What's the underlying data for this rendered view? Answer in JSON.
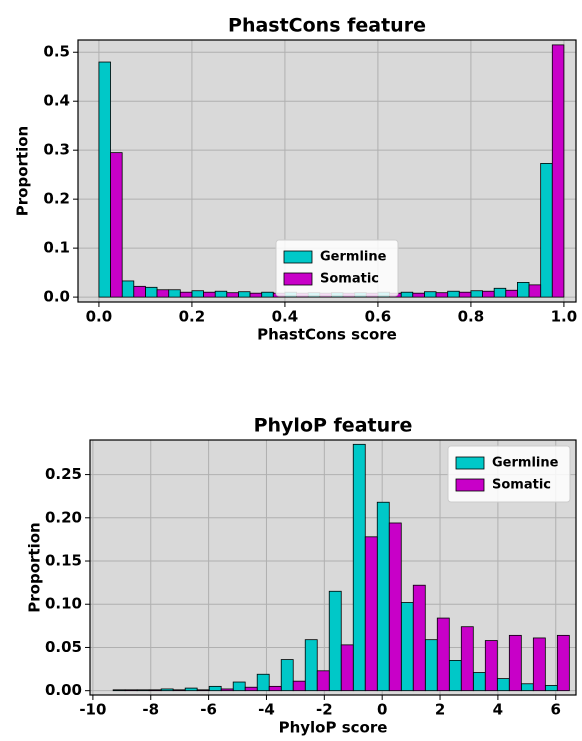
{
  "chart_data": [
    {
      "type": "histogram",
      "title": "PhastCons feature",
      "xlabel": "PhastCons score",
      "ylabel": "Proportion",
      "bins": [
        0,
        0.05,
        0.1,
        0.15,
        0.2,
        0.25,
        0.3,
        0.35,
        0.4,
        0.45,
        0.5,
        0.55,
        0.6,
        0.65,
        0.7,
        0.75,
        0.8,
        0.85,
        0.9,
        0.95,
        1.0
      ],
      "series": [
        {
          "name": "Germline",
          "color": "#00c8c8",
          "values": [
            0.48,
            0.033,
            0.02,
            0.015,
            0.013,
            0.012,
            0.011,
            0.01,
            0.01,
            0.009,
            0.009,
            0.009,
            0.01,
            0.01,
            0.011,
            0.012,
            0.013,
            0.018,
            0.03,
            0.273
          ]
        },
        {
          "name": "Somatic",
          "color": "#c800c8",
          "values": [
            0.295,
            0.022,
            0.015,
            0.01,
            0.01,
            0.009,
            0.008,
            0.008,
            0.008,
            0.008,
            0.008,
            0.008,
            0.008,
            0.008,
            0.009,
            0.01,
            0.012,
            0.014,
            0.025,
            0.515
          ]
        }
      ],
      "xlim": [
        -0.045,
        1.026
      ],
      "ylim": [
        -0.01,
        0.525
      ],
      "xticks": [
        {
          "value": 0,
          "label": "0.0"
        },
        0.2,
        0.4,
        0.6,
        0.8,
        {
          "value": 1,
          "label": "1.0"
        }
      ],
      "yticks": [
        {
          "value": 0,
          "label": "0.0"
        },
        0.1,
        0.2,
        0.3,
        0.4,
        0.5
      ],
      "grid": true,
      "legend_loc": "lower center"
    },
    {
      "type": "histogram",
      "title": "PhyloP feature",
      "xlabel": "PhyloP score",
      "ylabel": "Proportion",
      "bins": [
        -9.3,
        -8.47,
        -7.64,
        -6.81,
        -5.98,
        -5.15,
        -4.32,
        -3.49,
        -2.66,
        -1.83,
        -1.0,
        -0.17,
        0.66,
        1.49,
        2.32,
        3.15,
        3.98,
        4.81,
        5.64,
        6.47
      ],
      "series": [
        {
          "name": "Germline",
          "color": "#00c8c8",
          "values": [
            0.001,
            0.001,
            0.002,
            0.003,
            0.005,
            0.01,
            0.019,
            0.036,
            0.059,
            0.115,
            0.285,
            0.218,
            0.102,
            0.059,
            0.035,
            0.021,
            0.014,
            0.008,
            0.006
          ]
        },
        {
          "name": "Somatic",
          "color": "#c800c8",
          "values": [
            0.001,
            0.001,
            0.001,
            0.001,
            0.002,
            0.004,
            0.005,
            0.011,
            0.023,
            0.053,
            0.178,
            0.194,
            0.122,
            0.084,
            0.074,
            0.058,
            0.064,
            0.061,
            0.064
          ]
        }
      ],
      "xlim": [
        -10.1,
        6.7
      ],
      "ylim": [
        -0.005,
        0.29
      ],
      "xticks": [
        -10,
        -8,
        -6,
        -4,
        -2,
        0,
        2,
        4,
        6
      ],
      "yticks": [
        {
          "value": 0,
          "label": "0.00"
        },
        {
          "value": 0.05,
          "label": "0.05"
        },
        {
          "value": 0.1,
          "label": "0.10"
        },
        {
          "value": 0.15,
          "label": "0.15"
        },
        {
          "value": 0.2,
          "label": "0.20"
        },
        {
          "value": 0.25,
          "label": "0.25"
        }
      ],
      "grid": true,
      "legend_loc": "upper right"
    }
  ]
}
